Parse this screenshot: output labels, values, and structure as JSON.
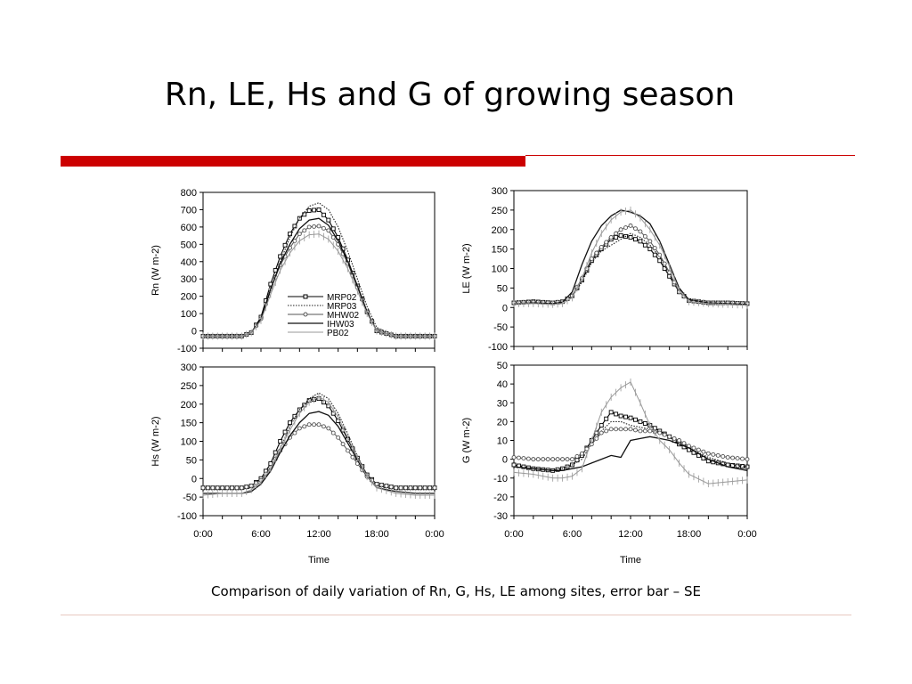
{
  "title": "Rn, LE, Hs and G of growing season",
  "caption": "Comparison of daily variation of Rn, G, Hs, LE among sites, error bar – SE",
  "colors": {
    "accent": "#cc0000",
    "rule": "#e8c8c0",
    "MRP02": "#000000",
    "MRP03": "#222222",
    "MHW02": "#555555",
    "IHW03": "#111111",
    "PB02": "#999999"
  },
  "legend": {
    "placement": "inside-bottom-right of Rn panel",
    "entries": [
      {
        "name": "MRP02",
        "marker": "square"
      },
      {
        "name": "MRP03",
        "marker": "dotted"
      },
      {
        "name": "MHW02",
        "marker": "circle"
      },
      {
        "name": "IHW03",
        "marker": "line"
      },
      {
        "name": "PB02",
        "marker": "line-light"
      }
    ]
  },
  "chart_data": [
    {
      "type": "line",
      "ylabel": "Rn (W m-2)",
      "xlabel": "",
      "ylim": [
        -100,
        800
      ],
      "yticks": [
        -100,
        0,
        100,
        200,
        300,
        400,
        500,
        600,
        700,
        800
      ],
      "x_hours": [
        0,
        2,
        4,
        5,
        6,
        7,
        8,
        9,
        10,
        11,
        12,
        13,
        14,
        15,
        16,
        17,
        18,
        20,
        22,
        24
      ],
      "series": [
        {
          "name": "MRP02",
          "values": [
            -30,
            -30,
            -30,
            -10,
            80,
            270,
            430,
            560,
            650,
            695,
            700,
            640,
            540,
            410,
            260,
            110,
            0,
            -30,
            -30,
            -30
          ]
        },
        {
          "name": "MRP03",
          "values": [
            -30,
            -30,
            -30,
            -10,
            60,
            230,
            400,
            540,
            650,
            720,
            740,
            700,
            600,
            460,
            300,
            140,
            20,
            -30,
            -30,
            -30
          ]
        },
        {
          "name": "MHW02",
          "values": [
            -30,
            -30,
            -30,
            -10,
            70,
            240,
            380,
            480,
            560,
            600,
            605,
            580,
            500,
            390,
            250,
            110,
            0,
            -30,
            -30,
            -30
          ]
        },
        {
          "name": "IHW03",
          "values": [
            -30,
            -30,
            -30,
            -10,
            70,
            240,
            390,
            500,
            590,
            640,
            650,
            610,
            520,
            400,
            260,
            110,
            0,
            -30,
            -30,
            -30
          ]
        },
        {
          "name": "PB02",
          "values": [
            -30,
            -30,
            -30,
            -10,
            60,
            210,
            350,
            450,
            520,
            555,
            560,
            530,
            460,
            360,
            230,
            100,
            0,
            -30,
            -30,
            -30
          ]
        }
      ]
    },
    {
      "type": "line",
      "ylabel": "LE (W m-2)",
      "xlabel": "",
      "ylim": [
        -100,
        300
      ],
      "yticks": [
        -100,
        -50,
        0,
        50,
        100,
        150,
        200,
        250,
        300
      ],
      "x_hours": [
        0,
        2,
        4,
        5,
        6,
        7,
        8,
        9,
        10,
        11,
        12,
        13,
        14,
        15,
        16,
        17,
        18,
        20,
        22,
        24
      ],
      "series": [
        {
          "name": "MRP02",
          "values": [
            12,
            15,
            12,
            15,
            30,
            70,
            120,
            150,
            175,
            185,
            180,
            170,
            150,
            120,
            80,
            40,
            18,
            12,
            12,
            10
          ]
        },
        {
          "name": "MRP03",
          "values": [
            12,
            14,
            12,
            15,
            28,
            65,
            115,
            145,
            160,
            175,
            190,
            180,
            160,
            130,
            85,
            40,
            18,
            12,
            12,
            10
          ]
        },
        {
          "name": "MHW02",
          "values": [
            12,
            14,
            12,
            15,
            30,
            75,
            125,
            155,
            180,
            200,
            210,
            195,
            170,
            135,
            90,
            40,
            18,
            12,
            12,
            10
          ]
        },
        {
          "name": "IHW03",
          "values": [
            10,
            12,
            10,
            14,
            40,
            110,
            170,
            210,
            235,
            250,
            245,
            235,
            215,
            170,
            110,
            50,
            20,
            12,
            10,
            8
          ]
        },
        {
          "name": "PB02",
          "values": [
            10,
            10,
            8,
            10,
            25,
            75,
            140,
            190,
            225,
            245,
            250,
            230,
            200,
            160,
            105,
            45,
            15,
            10,
            8,
            6
          ]
        }
      ]
    },
    {
      "type": "line",
      "ylabel": "Hs (W m-2)",
      "xlabel": "Time",
      "ylim": [
        -100,
        300
      ],
      "yticks": [
        -100,
        -50,
        0,
        50,
        100,
        150,
        200,
        250,
        300
      ],
      "xticks": [
        "0:00",
        "6:00",
        "12:00",
        "18:00",
        "0:00"
      ],
      "x_hours": [
        0,
        2,
        4,
        5,
        6,
        7,
        8,
        9,
        10,
        11,
        12,
        13,
        14,
        15,
        16,
        17,
        18,
        20,
        22,
        24
      ],
      "series": [
        {
          "name": "MRP02",
          "values": [
            -25,
            -25,
            -25,
            -20,
            0,
            40,
            100,
            150,
            185,
            210,
            215,
            195,
            155,
            105,
            55,
            10,
            -15,
            -25,
            -25,
            -25
          ]
        },
        {
          "name": "MRP03",
          "values": [
            -30,
            -30,
            -30,
            -25,
            -10,
            25,
            80,
            140,
            185,
            215,
            230,
            215,
            175,
            120,
            60,
            10,
            -20,
            -30,
            -30,
            -30
          ]
        },
        {
          "name": "MHW02",
          "values": [
            -25,
            -25,
            -25,
            -20,
            -5,
            30,
            75,
            110,
            135,
            145,
            145,
            135,
            110,
            75,
            40,
            5,
            -15,
            -25,
            -25,
            -25
          ]
        },
        {
          "name": "IHW03",
          "values": [
            -40,
            -40,
            -40,
            -35,
            -15,
            20,
            70,
            115,
            150,
            175,
            180,
            170,
            140,
            95,
            50,
            5,
            -25,
            -35,
            -40,
            -40
          ]
        },
        {
          "name": "PB02",
          "values": [
            -45,
            -40,
            -40,
            -30,
            -10,
            25,
            80,
            130,
            175,
            205,
            220,
            205,
            165,
            110,
            55,
            5,
            -25,
            -40,
            -45,
            -45
          ]
        }
      ]
    },
    {
      "type": "line",
      "ylabel": "G (W m-2)",
      "xlabel": "Time",
      "ylim": [
        -30,
        50
      ],
      "yticks": [
        -30,
        -20,
        -10,
        0,
        10,
        20,
        30,
        40,
        50
      ],
      "xticks": [
        "0:00",
        "6:00",
        "12:00",
        "18:00",
        "0:00"
      ],
      "x_hours": [
        0,
        2,
        4,
        5,
        6,
        7,
        8,
        9,
        10,
        11,
        12,
        13,
        14,
        15,
        16,
        17,
        18,
        20,
        22,
        24
      ],
      "series": [
        {
          "name": "MRP02",
          "values": [
            -3,
            -5,
            -6,
            -5,
            -3,
            2,
            10,
            18,
            25,
            23,
            22,
            20,
            18,
            15,
            12,
            8,
            5,
            -1,
            -3,
            -4
          ]
        },
        {
          "name": "MRP03",
          "values": [
            -4,
            -5,
            -6,
            -5,
            -3,
            0,
            8,
            15,
            20,
            20,
            18,
            17,
            16,
            14,
            12,
            9,
            6,
            1,
            -2,
            -4
          ]
        },
        {
          "name": "MHW02",
          "values": [
            1,
            0,
            0,
            0,
            0,
            3,
            8,
            14,
            16,
            16,
            16,
            15,
            15,
            14,
            12,
            10,
            7,
            3,
            1,
            0
          ]
        },
        {
          "name": "IHW03",
          "values": [
            -4,
            -5,
            -6,
            -6,
            -5,
            -4,
            -2,
            0,
            2,
            1,
            10,
            11,
            12,
            11,
            10,
            8,
            6,
            0,
            -4,
            -6
          ]
        },
        {
          "name": "PB02",
          "values": [
            -7,
            -8,
            -10,
            -10,
            -9,
            -5,
            10,
            25,
            33,
            38,
            41,
            30,
            18,
            10,
            5,
            -2,
            -8,
            -13,
            -12,
            -11
          ]
        }
      ]
    }
  ]
}
